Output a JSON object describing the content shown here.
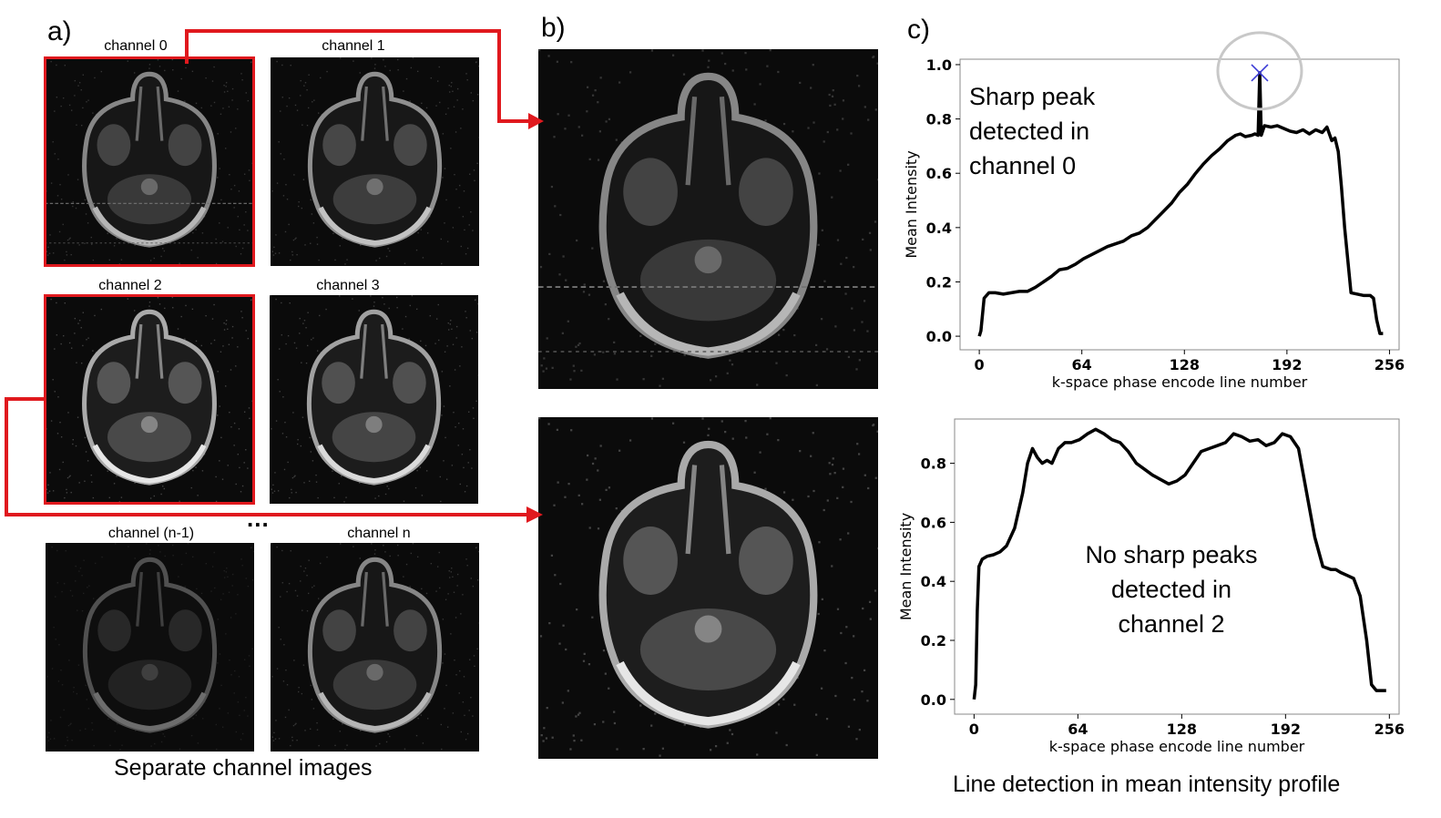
{
  "panels": {
    "a": {
      "letter": "a)",
      "caption": "Separate channel images"
    },
    "b": {
      "letter": "b)"
    },
    "c": {
      "letter": "c)",
      "caption": "Line detection in mean intensity profile"
    }
  },
  "channels": [
    {
      "label": "channel 0",
      "selected": true,
      "artifact": true,
      "brightness": 0.75
    },
    {
      "label": "channel 1",
      "selected": false,
      "artifact": false,
      "brightness": 0.8
    },
    {
      "label": "channel 2",
      "selected": true,
      "artifact": false,
      "brightness": 0.95
    },
    {
      "label": "channel 3",
      "selected": false,
      "artifact": false,
      "brightness": 0.9
    },
    {
      "label": "channel (n-1)",
      "selected": false,
      "artifact": false,
      "brightness": 0.45
    },
    {
      "label": "channel n",
      "selected": false,
      "artifact": false,
      "brightness": 0.75
    }
  ],
  "ellipsis": "...",
  "colors": {
    "arrow": "#e0191e",
    "marker": "#3b3bd6",
    "highlight_circle": "#c8c8c8"
  },
  "chart_data": [
    {
      "type": "line",
      "xlabel": "k-space phase encode line number",
      "ylabel": "Mean Intensity",
      "xticks": [
        0,
        64,
        128,
        192,
        256
      ],
      "yticks": [
        "0.0",
        "0.2",
        "0.4",
        "0.6",
        "0.8",
        "1.0"
      ],
      "xlim": [
        -12,
        262
      ],
      "ylim": [
        -0.05,
        1.02
      ],
      "annotation": [
        "Sharp peak",
        "detected in",
        "channel 0"
      ],
      "peak_marker": {
        "x": 175,
        "y": 0.97,
        "symbol": "x"
      },
      "x": [
        0,
        1,
        3,
        6,
        10,
        15,
        20,
        25,
        30,
        35,
        40,
        45,
        50,
        55,
        60,
        65,
        70,
        75,
        80,
        85,
        90,
        95,
        100,
        105,
        110,
        115,
        120,
        125,
        130,
        135,
        140,
        145,
        150,
        155,
        160,
        163,
        166,
        170,
        172,
        174,
        175,
        176,
        178,
        182,
        186,
        190,
        194,
        198,
        202,
        206,
        210,
        214,
        217,
        220,
        222,
        224,
        226,
        228,
        232,
        236,
        240,
        244,
        246,
        248,
        250,
        252
      ],
      "y": [
        0.0,
        0.02,
        0.14,
        0.16,
        0.16,
        0.155,
        0.16,
        0.165,
        0.165,
        0.18,
        0.2,
        0.22,
        0.245,
        0.25,
        0.265,
        0.285,
        0.3,
        0.315,
        0.33,
        0.34,
        0.35,
        0.37,
        0.38,
        0.4,
        0.43,
        0.46,
        0.49,
        0.53,
        0.56,
        0.6,
        0.635,
        0.665,
        0.69,
        0.72,
        0.74,
        0.745,
        0.735,
        0.74,
        0.745,
        0.74,
        0.97,
        0.74,
        0.775,
        0.77,
        0.775,
        0.765,
        0.755,
        0.75,
        0.76,
        0.745,
        0.76,
        0.75,
        0.77,
        0.72,
        0.73,
        0.68,
        0.55,
        0.4,
        0.16,
        0.155,
        0.15,
        0.15,
        0.14,
        0.06,
        0.01,
        0.01
      ]
    },
    {
      "type": "line",
      "xlabel": "k-space phase encode line number",
      "ylabel": "Mean Intensity",
      "xticks": [
        0,
        64,
        128,
        192,
        256
      ],
      "yticks": [
        "0.0",
        "0.2",
        "0.4",
        "0.6",
        "0.8"
      ],
      "xlim": [
        -12,
        262
      ],
      "ylim": [
        -0.05,
        0.95
      ],
      "annotation": [
        "No sharp peaks",
        "detected in",
        "channel 2"
      ],
      "x": [
        0,
        1,
        2,
        3,
        5,
        8,
        12,
        16,
        20,
        25,
        30,
        33,
        36,
        39,
        42,
        45,
        48,
        52,
        56,
        60,
        65,
        70,
        75,
        80,
        85,
        90,
        95,
        100,
        105,
        110,
        115,
        120,
        125,
        130,
        135,
        140,
        145,
        150,
        155,
        160,
        165,
        170,
        175,
        180,
        185,
        190,
        195,
        200,
        205,
        210,
        215,
        220,
        223,
        226,
        230,
        234,
        238,
        242,
        245,
        248,
        250,
        252,
        254
      ],
      "y": [
        0.0,
        0.05,
        0.3,
        0.45,
        0.475,
        0.485,
        0.49,
        0.5,
        0.52,
        0.58,
        0.7,
        0.8,
        0.85,
        0.82,
        0.8,
        0.81,
        0.8,
        0.85,
        0.87,
        0.87,
        0.88,
        0.9,
        0.915,
        0.9,
        0.88,
        0.87,
        0.84,
        0.8,
        0.78,
        0.76,
        0.745,
        0.73,
        0.74,
        0.76,
        0.8,
        0.84,
        0.85,
        0.86,
        0.87,
        0.9,
        0.89,
        0.875,
        0.88,
        0.86,
        0.87,
        0.9,
        0.89,
        0.85,
        0.7,
        0.55,
        0.45,
        0.44,
        0.44,
        0.43,
        0.42,
        0.41,
        0.35,
        0.2,
        0.05,
        0.03,
        0.03,
        0.03,
        0.03
      ]
    }
  ]
}
